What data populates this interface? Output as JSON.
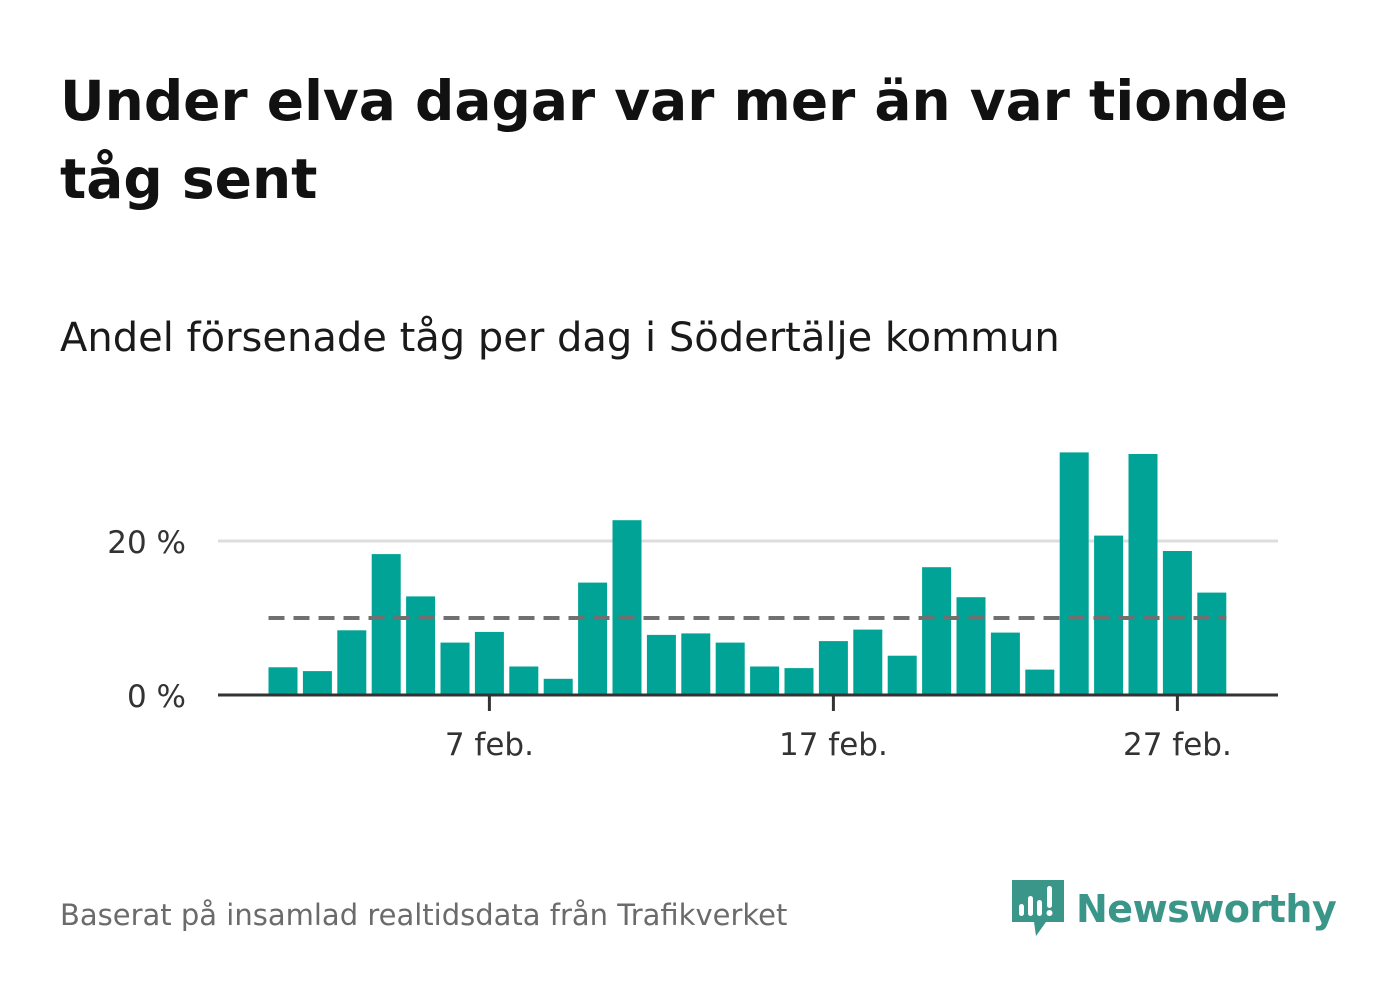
{
  "title": "Under elva dagar var mer än var tionde tåg sent",
  "subtitle": "Andel försenade tåg per dag i Södertälje kommun",
  "source": "Baserat på insamlad realtidsdata från Trafikverket",
  "brand": {
    "name": "Newsworthy",
    "logo_icon": "newsworthy-logo-icon",
    "color": "#3b968a"
  },
  "colors": {
    "bar": "#00a396",
    "reference_line": "#707070",
    "grid": "#dddddd",
    "axis": "#333333"
  },
  "chart_data": {
    "type": "bar",
    "x_unit": "day of February",
    "x": [
      1,
      2,
      3,
      4,
      5,
      6,
      7,
      8,
      9,
      10,
      11,
      12,
      13,
      14,
      15,
      16,
      17,
      18,
      19,
      20,
      21,
      22,
      23,
      24,
      25,
      26,
      27,
      28
    ],
    "values": [
      3.6,
      3.1,
      8.4,
      18.3,
      12.8,
      6.8,
      8.2,
      3.7,
      2.1,
      14.6,
      22.7,
      7.8,
      8.0,
      6.8,
      3.7,
      3.5,
      7.0,
      8.5,
      5.1,
      16.6,
      12.7,
      8.1,
      3.3,
      31.5,
      20.7,
      31.3,
      18.7,
      13.3
    ],
    "unit": "%",
    "reference_line": {
      "value": 10,
      "style": "dashed"
    },
    "y_ticks": [
      {
        "value": 0,
        "label": "0 %"
      },
      {
        "value": 20,
        "label": "20 %"
      }
    ],
    "x_ticks": [
      {
        "value": 7,
        "label": "7 feb."
      },
      {
        "value": 17,
        "label": "17 feb."
      },
      {
        "value": 27,
        "label": "27 feb."
      }
    ],
    "ylim": [
      0,
      32
    ],
    "grid": true,
    "xlabel": "",
    "ylabel": ""
  }
}
